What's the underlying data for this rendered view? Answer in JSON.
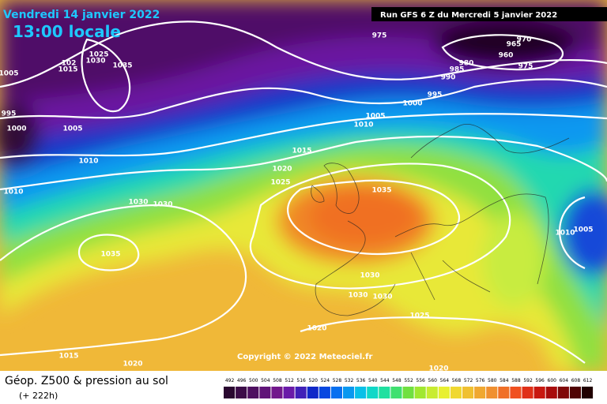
{
  "header": {
    "date": "Vendredi 14 janvier 2022",
    "time": "13:00 locale",
    "run": "Run GFS 6 Z du Mercredi 5 janvier 2022"
  },
  "map": {
    "copyright": "Copyright © 2022 Meteociel.fr",
    "isobar_labels": [
      975,
      970,
      965,
      960,
      975,
      980,
      985,
      990,
      995,
      1000,
      1005,
      1010,
      1015,
      1020,
      1025,
      1035,
      1030,
      1030,
      1035,
      1030,
      1030,
      1030,
      1025,
      1020,
      1015,
      1020,
      1020,
      1010,
      1005,
      1010,
      1010,
      1005,
      1000,
      995,
      1005,
      1025,
      1030,
      1035,
      102,
      1015
    ]
  },
  "footer": {
    "title": "Géop. Z500 & pression au sol",
    "lead": "(+ 222h)"
  },
  "legend": {
    "values": [
      492,
      496,
      500,
      504,
      508,
      512,
      516,
      520,
      524,
      528,
      532,
      536,
      540,
      544,
      548,
      552,
      556,
      560,
      564,
      568,
      572,
      576,
      580,
      584,
      588,
      592,
      596,
      600,
      604,
      608,
      612
    ],
    "colors": [
      "#2a0830",
      "#3c0c48",
      "#4e1060",
      "#601478",
      "#72188c",
      "#6a1aa8",
      "#4020b8",
      "#1028c8",
      "#0848e0",
      "#0870f0",
      "#0898f0",
      "#08c0e8",
      "#10d8c8",
      "#20e0a0",
      "#40e070",
      "#70e040",
      "#a0e830",
      "#c8ec30",
      "#e8f030",
      "#f0d830",
      "#f0c030",
      "#f0a830",
      "#f09030",
      "#f07028",
      "#f05020",
      "#e03018",
      "#c81810",
      "#a80c0c",
      "#800808",
      "#500404",
      "#200000"
    ]
  }
}
